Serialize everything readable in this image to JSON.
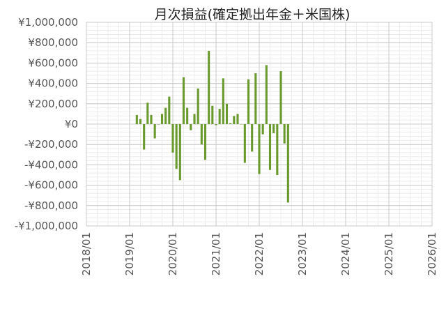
{
  "chart_data": {
    "type": "bar",
    "title": "月次損益(確定拠出年金＋米国株)",
    "xlabel": "",
    "ylabel": "",
    "ylim": [
      -1000000,
      1000000
    ],
    "xlim": [
      "2018/01",
      "2026/01"
    ],
    "grid": true,
    "legend": "none",
    "bar_color": "#6a9a2e",
    "y_ticks": [
      "¥1,000,000",
      "¥800,000",
      "¥600,000",
      "¥400,000",
      "¥200,000",
      "¥0",
      "-¥200,000",
      "-¥400,000",
      "-¥600,000",
      "-¥800,000",
      "-¥1,000,000"
    ],
    "x_ticks": [
      "2018/01",
      "2019/01",
      "2020/01",
      "2021/01",
      "2022/01",
      "2023/01",
      "2024/01",
      "2025/01",
      "2026/01"
    ],
    "x": [
      "2019/03",
      "2019/04",
      "2019/05",
      "2019/06",
      "2019/07",
      "2019/08",
      "2019/09",
      "2019/10",
      "2019/11",
      "2019/12",
      "2020/01",
      "2020/02",
      "2020/03",
      "2020/04",
      "2020/05",
      "2020/06",
      "2020/07",
      "2020/08",
      "2020/09",
      "2020/10",
      "2020/11",
      "2020/12",
      "2021/01",
      "2021/02",
      "2021/03",
      "2021/04",
      "2021/05",
      "2021/06",
      "2021/07",
      "2021/08",
      "2021/09",
      "2021/10",
      "2021/11",
      "2021/12",
      "2022/01",
      "2022/02",
      "2022/03",
      "2022/04",
      "2022/05",
      "2022/06",
      "2022/07",
      "2022/08",
      "2022/09"
    ],
    "values": [
      90000,
      50000,
      -250000,
      210000,
      90000,
      -140000,
      0,
      100000,
      160000,
      270000,
      -280000,
      -440000,
      -550000,
      460000,
      160000,
      -60000,
      100000,
      350000,
      -200000,
      -350000,
      720000,
      180000,
      -10000,
      150000,
      450000,
      200000,
      10000,
      80000,
      100000,
      0,
      -380000,
      440000,
      -270000,
      500000,
      -490000,
      -100000,
      580000,
      -450000,
      -90000,
      -500000,
      520000,
      -190000,
      -770000
    ]
  }
}
